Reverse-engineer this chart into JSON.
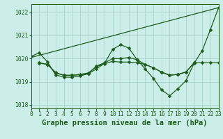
{
  "title": "Graphe pression niveau de la mer (hPa)",
  "background_color": "#cceee8",
  "line_color": "#1e5c1e",
  "grid_color": "#aad4ce",
  "series": [
    {
      "x": [
        0,
        23
      ],
      "y": [
        1020.05,
        1022.2
      ],
      "marker": null,
      "markersize": 0,
      "linewidth": 0.9
    },
    {
      "x": [
        0,
        1,
        2,
        3,
        4,
        5,
        6,
        7,
        8,
        9,
        10,
        11,
        12,
        13,
        14,
        15,
        16,
        17,
        18,
        19,
        20,
        21,
        22,
        23
      ],
      "y": [
        1020.1,
        1020.25,
        1019.85,
        1019.3,
        1019.2,
        1019.2,
        1019.25,
        1019.35,
        1019.55,
        1019.8,
        1020.4,
        1020.6,
        1020.45,
        1019.95,
        1019.55,
        1019.15,
        1018.65,
        1018.4,
        1018.7,
        1019.05,
        1019.8,
        1020.35,
        1021.25,
        1022.2
      ],
      "marker": "D",
      "markersize": 2.5,
      "linewidth": 0.9
    },
    {
      "x": [
        1,
        2,
        3,
        4,
        5,
        6,
        7,
        8,
        9,
        10,
        11,
        12,
        13,
        14,
        15,
        16,
        17,
        18,
        19,
        20,
        21,
        22,
        23
      ],
      "y": [
        1019.8,
        1019.75,
        1019.4,
        1019.28,
        1019.28,
        1019.3,
        1019.35,
        1019.68,
        1019.82,
        1020.0,
        1020.0,
        1020.05,
        1019.95,
        1019.75,
        1019.6,
        1019.42,
        1019.28,
        1019.32,
        1019.42,
        1019.82,
        1019.82,
        1019.82,
        1019.82
      ],
      "marker": "D",
      "markersize": 2.5,
      "linewidth": 0.9
    },
    {
      "x": [
        1,
        2,
        3,
        4,
        5,
        6,
        7,
        8,
        9,
        10,
        11,
        12,
        13,
        14,
        15,
        16,
        17,
        18,
        19,
        20
      ],
      "y": [
        1019.82,
        1019.75,
        1019.38,
        1019.28,
        1019.28,
        1019.32,
        1019.38,
        1019.65,
        1019.78,
        1019.88,
        1019.85,
        1019.85,
        1019.82,
        1019.75,
        1019.6,
        1019.42,
        1019.28,
        1019.32,
        1019.42,
        1019.82
      ],
      "marker": "D",
      "markersize": 2.5,
      "linewidth": 0.9
    }
  ],
  "xlim": [
    0,
    23
  ],
  "ylim": [
    1017.85,
    1022.35
  ],
  "yticks": [
    1018,
    1019,
    1020,
    1021,
    1022
  ],
  "xticks": [
    0,
    1,
    2,
    3,
    4,
    5,
    6,
    7,
    8,
    9,
    10,
    11,
    12,
    13,
    14,
    15,
    16,
    17,
    18,
    19,
    20,
    21,
    22,
    23
  ],
  "title_fontsize": 7.5,
  "tick_fontsize": 5.8,
  "title_color": "#1e5c1e"
}
